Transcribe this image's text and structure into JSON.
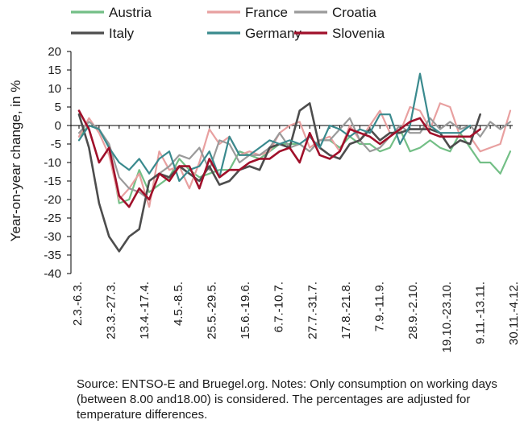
{
  "chart_data": {
    "type": "line",
    "title": "",
    "xlabel": "",
    "ylabel": "Year-on-year change, in %",
    "ylim": [
      -40,
      20
    ],
    "yticks": [
      20,
      15,
      10,
      5,
      0,
      -5,
      -10,
      -15,
      -20,
      -25,
      -30,
      -35,
      -40
    ],
    "x_tick_labels": [
      "2.3.-6.3.",
      "23.3.-27.3.",
      "13.4.-17.4.",
      "4.5.-8.5.",
      "25.5.-29.5.",
      "15.6.-19.6.",
      "6.7.-10.7.",
      "27.7.-31.7.",
      "17.8.-21.8.",
      "7.9.-11.9.",
      "28.9.-2.10.",
      "19.10.-23.10.",
      "9.11.-13.11.",
      "30.11.-4.12."
    ],
    "legend_position": "top",
    "grid": false,
    "series": [
      {
        "name": "Austria",
        "color": "#73bf86",
        "values": [
          -3,
          0,
          -1,
          -6,
          -21,
          -20,
          -12,
          -18,
          -16,
          -14,
          -9,
          -12,
          -14,
          -13,
          -12,
          -12,
          -7,
          -8,
          -9,
          -7,
          -5,
          -5,
          -5,
          -7,
          -4,
          -4,
          -6,
          -3,
          -5,
          -5,
          -7,
          -6,
          -1,
          -7,
          -6,
          -4,
          -6,
          -7,
          -2,
          -6,
          -10,
          -10,
          -13,
          -7
        ]
      },
      {
        "name": "France",
        "color": "#e8a0a0",
        "values": [
          -3,
          2,
          -2,
          -8,
          -20,
          -17,
          -13,
          -22,
          -7,
          -12,
          -11,
          -17,
          -10,
          -1,
          -5,
          -3,
          -8,
          -7,
          -8,
          -7,
          -2,
          0,
          1,
          -6,
          -4,
          -3,
          -7,
          0,
          -4,
          0,
          4,
          -2,
          -2,
          5,
          4,
          -1,
          6,
          5,
          -3,
          -3,
          -7,
          -6,
          -5,
          4
        ]
      },
      {
        "name": "Croatia",
        "color": "#9a9a9a",
        "values": [
          -2,
          1,
          -1,
          -5,
          -14,
          -17,
          -18,
          -20,
          -13,
          -11,
          -8,
          -9,
          -6,
          -12,
          -4,
          -5,
          -10,
          -8,
          -8,
          -6,
          -2,
          -6,
          -5,
          -7,
          -4,
          -4,
          -1,
          2,
          -4,
          -7,
          -6,
          -3,
          0,
          -2,
          -2,
          2,
          -1,
          1,
          -1,
          0,
          -3,
          1,
          -1,
          1
        ]
      },
      {
        "name": "Italy",
        "color": "#4d4d4d",
        "values": [
          3,
          -6,
          -21,
          -30,
          -34,
          -30,
          -28,
          -15,
          -13,
          -14,
          -11,
          -13,
          -15,
          -11,
          -16,
          -15,
          -12,
          -11,
          -12,
          -6,
          -5,
          -6,
          4,
          6,
          -6,
          -8,
          -9,
          -5,
          -4,
          -1,
          -4,
          -2,
          -2,
          -1,
          -1,
          -1,
          -2,
          -6,
          -4,
          -5,
          3
        ]
      },
      {
        "name": "Germany",
        "color": "#3a8a8e",
        "values": [
          -4,
          0,
          -1,
          -6,
          -10,
          -12,
          -9,
          -13,
          -9,
          -7,
          -15,
          -12,
          -11,
          -7,
          -14,
          -3,
          -8,
          -8,
          -6,
          -4,
          -5,
          -4,
          -5,
          -3,
          -6,
          0,
          -1,
          -3,
          -1,
          -2,
          3,
          3,
          -5,
          0,
          14,
          0,
          -2,
          -2,
          -2,
          0
        ]
      },
      {
        "name": "Slovenia",
        "color": "#a0102a",
        "values": [
          4,
          -1,
          -10,
          -6,
          -19,
          -22,
          -17,
          -20,
          -13,
          -15,
          -11,
          -11,
          -17,
          -9,
          -14,
          -12,
          -12,
          -10,
          -9,
          -9,
          -7,
          -6,
          -10,
          -2,
          -8,
          -9,
          -7,
          -1,
          -2,
          -3,
          -5,
          -3,
          -1,
          1,
          2,
          -2,
          -3,
          -3,
          -3,
          -3,
          -1
        ]
      }
    ]
  },
  "note": "Source: ENTSO-E and Bruegel.org. Notes: Only consumption on working days (between 8.00 and18.00) is considered. The percentages are adjusted for temperature differences."
}
